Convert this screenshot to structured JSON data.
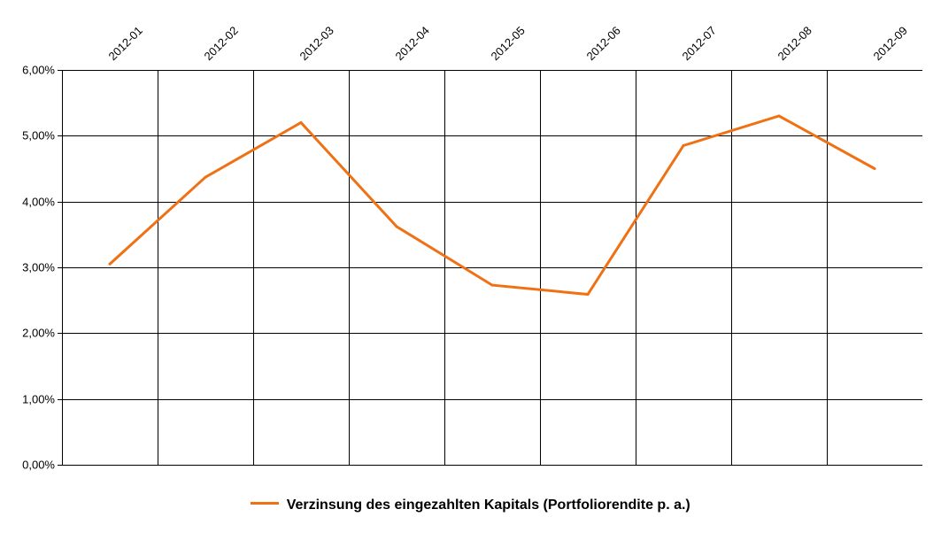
{
  "chart_data": {
    "type": "line",
    "categories": [
      "2012-01",
      "2012-02",
      "2012-03",
      "2012-04",
      "2012-05",
      "2012-06",
      "2012-07",
      "2012-08",
      "2012-09"
    ],
    "series": [
      {
        "name": "Verzinsung des eingezahlten Kapitals (Portfoliorendite p. a.)",
        "values": [
          3.05,
          4.37,
          5.2,
          3.62,
          2.73,
          2.59,
          4.85,
          5.3,
          4.5
        ],
        "color": "#f07014"
      }
    ],
    "yticks": [
      "0,00%",
      "1,00%",
      "2,00%",
      "3,00%",
      "4,00%",
      "5,00%",
      "6,00%"
    ],
    "ylim": [
      0,
      6
    ],
    "title": "",
    "xlabel": "",
    "ylabel": "",
    "grid": true,
    "legend_position": "bottom"
  }
}
